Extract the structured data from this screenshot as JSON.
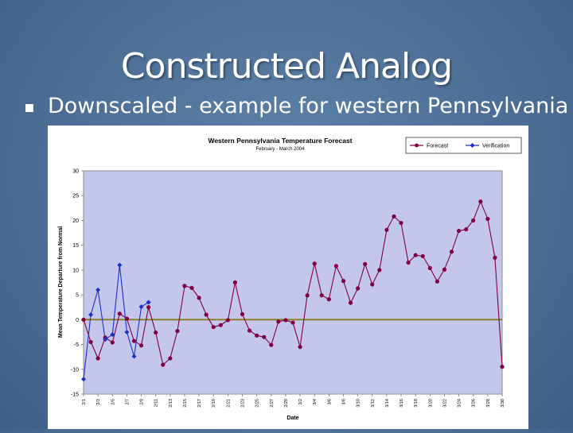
{
  "slide": {
    "title": "Constructed Analog",
    "bullet": "Downscaled - example for western Pennsylvania"
  },
  "chart_data": {
    "type": "line",
    "title": "Western Pennsylvania Temperature Forecast",
    "subtitle": "February - March 2004",
    "xlabel": "Date",
    "ylabel": "Mean Temperature Departure from Normal",
    "ylim": [
      -15,
      30
    ],
    "yticks": [
      30,
      25,
      20,
      15,
      10,
      5,
      0,
      -5,
      -10,
      -15
    ],
    "xticks": [
      "2/1",
      "2/3",
      "2/5",
      "2/7",
      "2/9",
      "2/11",
      "2/13",
      "2/15",
      "2/17",
      "2/19",
      "2/21",
      "2/23",
      "2/25",
      "2/27",
      "2/29",
      "3/2",
      "3/4",
      "3/6",
      "3/8",
      "3/10",
      "3/12",
      "3/14",
      "3/16",
      "3/18",
      "3/20",
      "3/22",
      "3/24",
      "3/26",
      "3/28",
      "3/30"
    ],
    "legend_position": "top-right",
    "series": [
      {
        "name": "Forecast",
        "color": "#800040",
        "x": [
          1,
          2,
          3,
          4,
          5,
          6,
          7,
          8,
          9,
          10,
          11,
          12,
          13,
          14,
          15,
          16,
          17,
          18,
          19,
          20,
          21,
          22,
          23,
          24,
          25,
          26,
          27,
          28,
          29,
          30,
          31,
          32,
          33,
          34,
          35,
          36,
          37,
          38,
          39,
          40,
          41,
          42,
          43,
          44,
          45,
          46,
          47,
          48,
          49,
          50,
          51,
          52,
          53,
          54,
          55,
          56,
          57,
          58,
          59
        ],
        "values": [
          0,
          -4.5,
          -7.8,
          -3.6,
          -4.6,
          1.2,
          0.2,
          -4.3,
          -5.2,
          2.5,
          -2.6,
          -9.1,
          -7.8,
          -2.3,
          6.8,
          6.4,
          4.4,
          1.0,
          -1.5,
          -1.1,
          -0.1,
          7.5,
          1.1,
          -2.2,
          -3.2,
          -3.5,
          -5.1,
          -0.4,
          -0.1,
          -0.6,
          -5.5,
          4.9,
          11.3,
          4.9,
          4.1,
          10.8,
          7.8,
          3.4,
          6.3,
          11.2,
          7.1,
          10.0,
          18.1,
          20.8,
          19.5,
          11.5,
          13.0,
          12.8,
          10.4,
          7.7,
          10.1,
          13.7,
          17.9,
          18.2,
          20.0,
          23.8,
          20.3,
          12.5,
          -9.5
        ]
      },
      {
        "name": "Verification",
        "color": "#1e2fc8",
        "x": [
          1,
          2,
          3,
          4,
          5,
          6,
          7,
          8,
          9,
          10
        ],
        "values": [
          -12,
          1.0,
          6.0,
          -4.0,
          -3.0,
          11.0,
          -2.5,
          -7.4,
          2.6,
          3.5
        ]
      },
      {
        "name": "",
        "color": "#8a7a1e",
        "x": [
          1,
          59
        ],
        "values": [
          0,
          0
        ]
      }
    ]
  }
}
